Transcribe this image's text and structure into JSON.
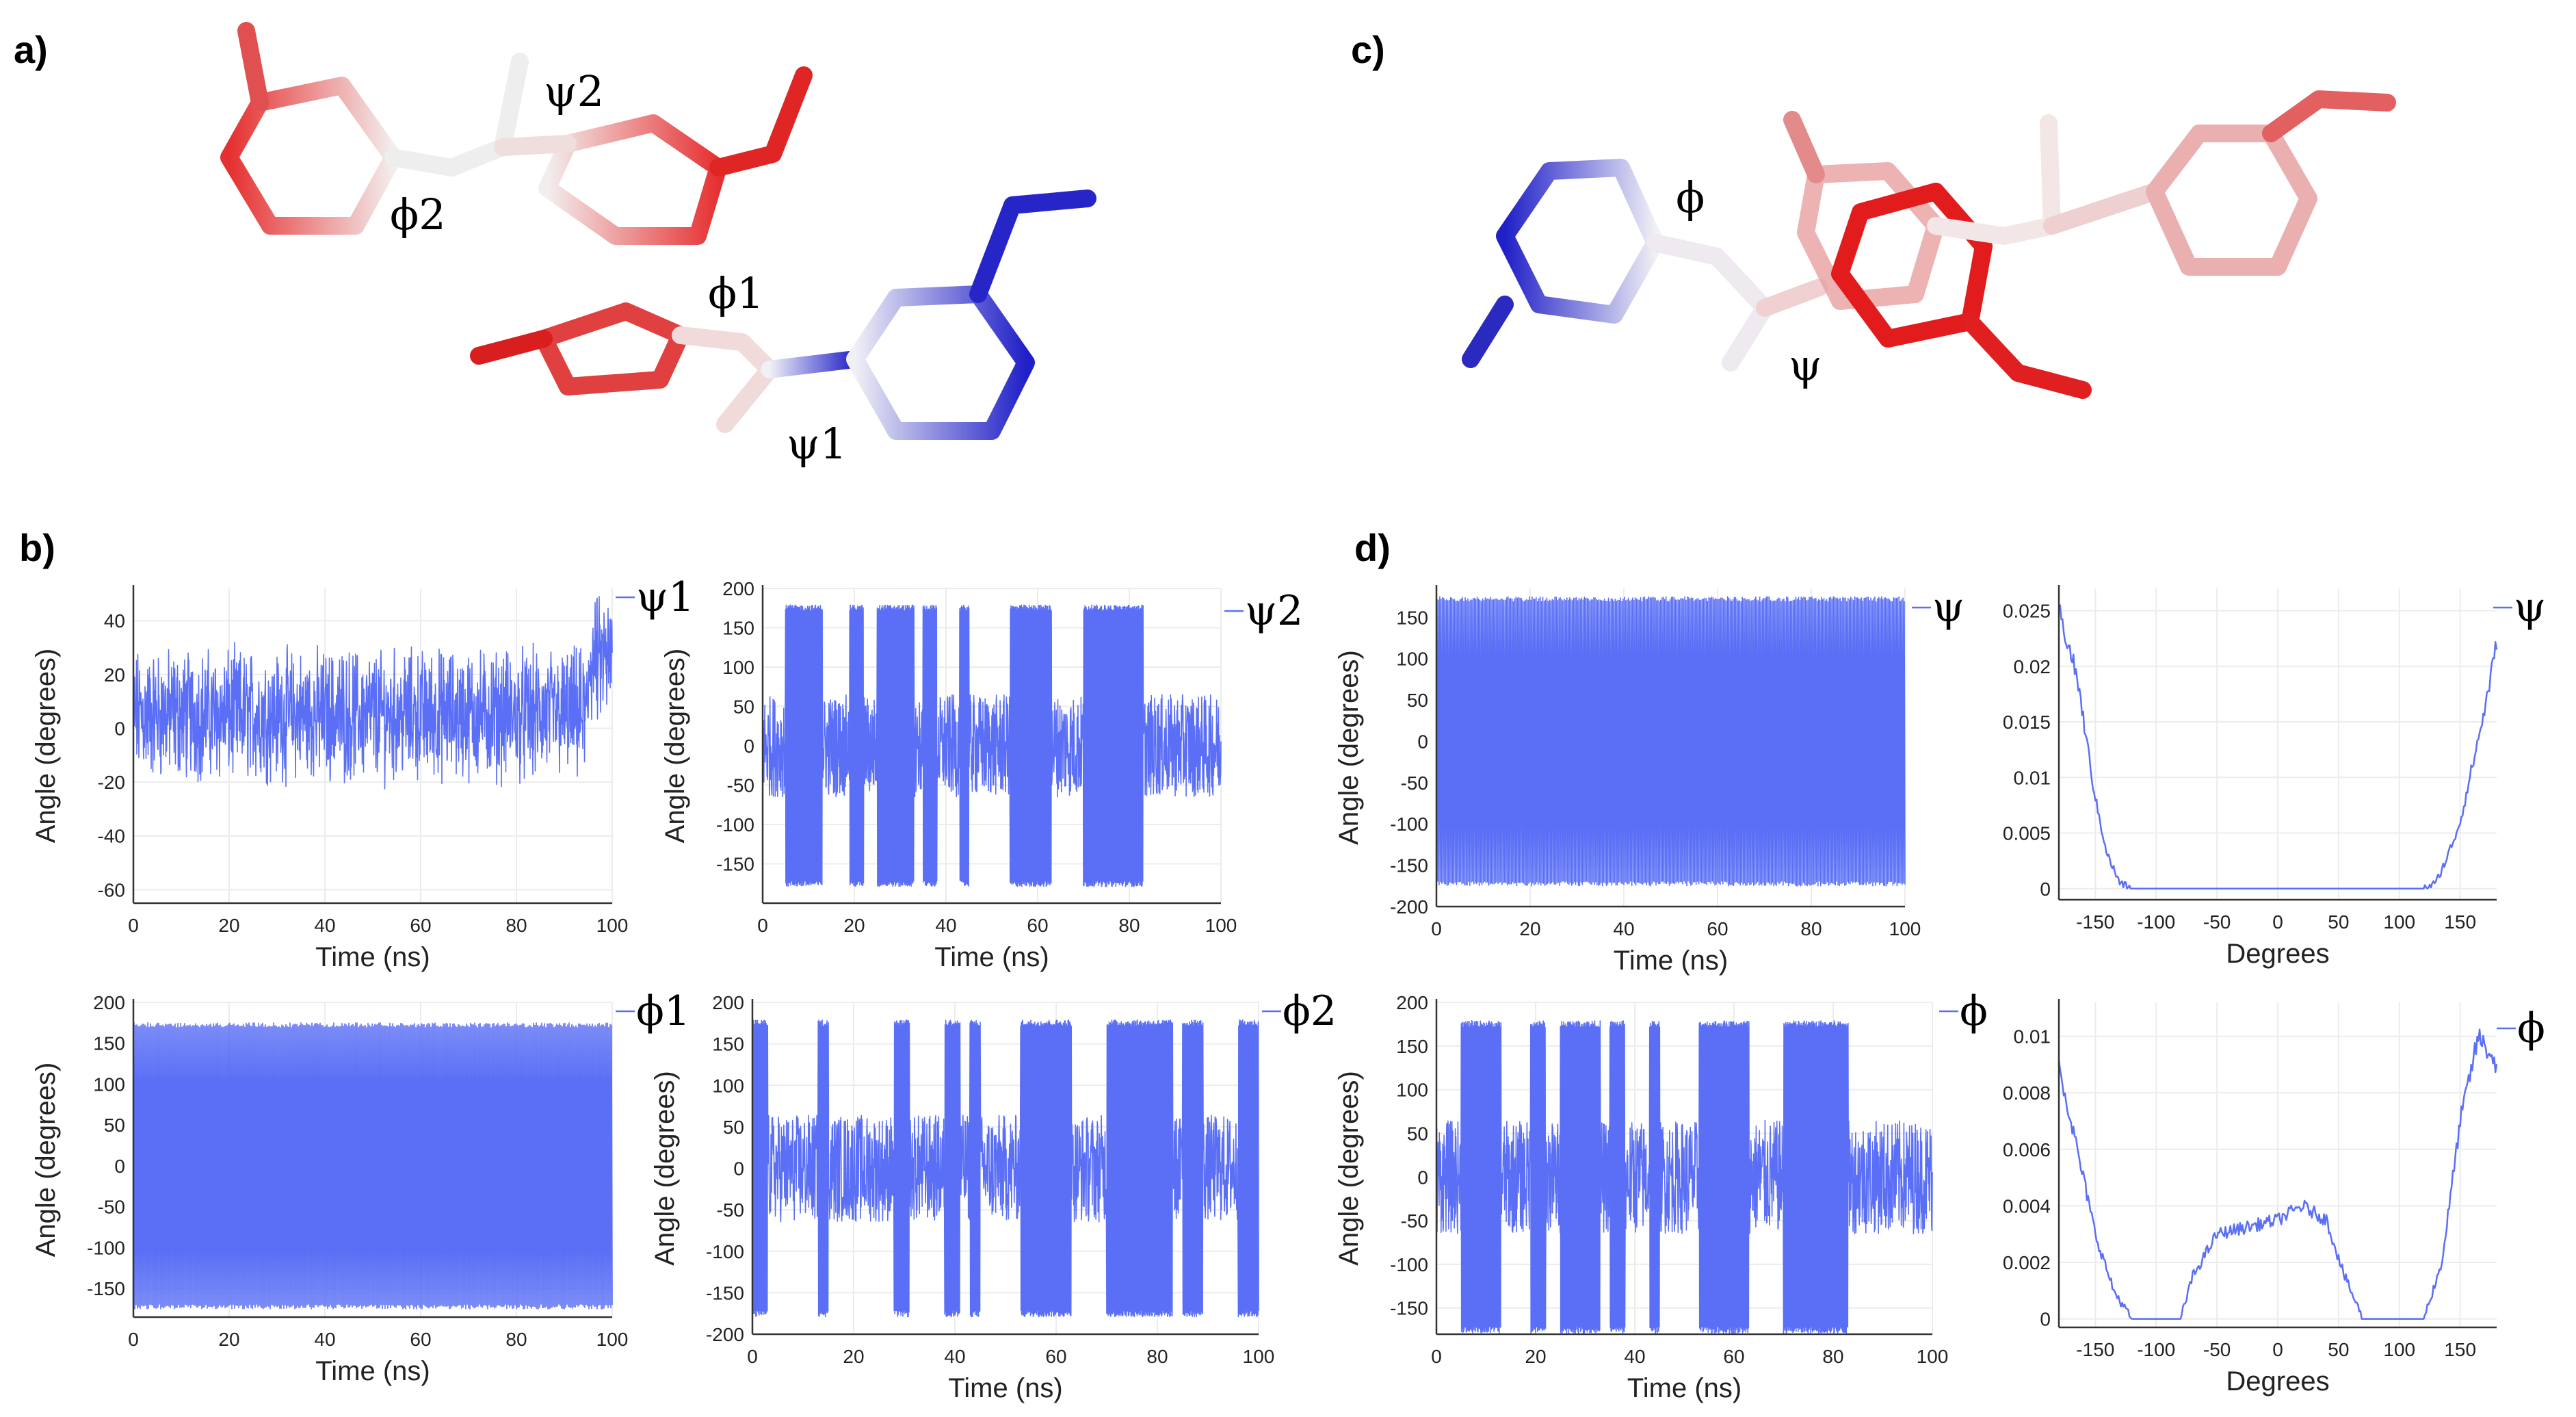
{
  "panel_labels": {
    "a": "a)",
    "b": "b)",
    "c": "c)",
    "d": "d)"
  },
  "molecule_labels": {
    "a": [
      "ψ2",
      "ϕ2",
      "ϕ1",
      "ψ1"
    ],
    "c": [
      "ϕ",
      "ψ"
    ]
  },
  "colors": {
    "series": "#5a6ff5",
    "grid": "#ececec",
    "axis": "#333333",
    "red": "#e02020",
    "blue": "#2222cc",
    "white": "#f2f2f2"
  },
  "chart_data": [
    {
      "id": "b-psi1",
      "type": "line",
      "legend": "ψ1",
      "xlabel": "Time (ns)",
      "ylabel": "Angle (degrees)",
      "xlim": [
        0,
        100
      ],
      "ylim": [
        -65,
        52
      ],
      "xticks": [
        0,
        20,
        40,
        60,
        80,
        100
      ],
      "yticks": [
        -60,
        -40,
        -20,
        0,
        20,
        40
      ],
      "pattern": "noise",
      "center": 5,
      "spread": 18
    },
    {
      "id": "b-psi2",
      "type": "line",
      "legend": "ψ2",
      "xlabel": "Time (ns)",
      "ylabel": "Angle (degrees)",
      "xlim": [
        0,
        100
      ],
      "ylim": [
        -200,
        200
      ],
      "xticks": [
        0,
        20,
        40,
        60,
        80,
        100
      ],
      "yticks": [
        -150,
        -100,
        -50,
        0,
        50,
        100,
        150,
        200
      ],
      "pattern": "switching",
      "hop_intervals": [
        [
          5,
          13
        ],
        [
          19,
          22
        ],
        [
          25,
          33
        ],
        [
          35,
          38
        ],
        [
          43,
          45
        ],
        [
          54,
          63
        ],
        [
          70,
          83
        ]
      ]
    },
    {
      "id": "b-phi1",
      "type": "line",
      "legend": "ϕ1",
      "xlabel": "Time (ns)",
      "ylabel": "Angle (degrees)",
      "xlim": [
        0,
        100
      ],
      "ylim": [
        -185,
        200
      ],
      "xticks": [
        0,
        20,
        40,
        60,
        80,
        100
      ],
      "yticks": [
        -150,
        -100,
        -50,
        0,
        50,
        100,
        150,
        200
      ],
      "pattern": "dense"
    },
    {
      "id": "b-phi2",
      "type": "line",
      "legend": "ϕ2",
      "xlabel": "Time (ns)",
      "ylabel": "Angle (degrees)",
      "xlim": [
        0,
        100
      ],
      "ylim": [
        -200,
        200
      ],
      "xticks": [
        0,
        20,
        40,
        60,
        80,
        100
      ],
      "yticks": [
        -200,
        -150,
        -100,
        -50,
        0,
        50,
        100,
        150,
        200
      ],
      "pattern": "switching",
      "hop_intervals": [
        [
          0,
          3
        ],
        [
          13,
          15
        ],
        [
          28,
          31
        ],
        [
          38,
          41
        ],
        [
          43,
          45
        ],
        [
          53,
          63
        ],
        [
          70,
          83
        ],
        [
          85,
          89
        ],
        [
          96,
          100
        ]
      ]
    },
    {
      "id": "d-psi",
      "type": "line",
      "legend": "ψ",
      "xlabel": "Time (ns)",
      "ylabel": "Angle (degrees)",
      "xlim": [
        0,
        100
      ],
      "ylim": [
        -200,
        185
      ],
      "xticks": [
        0,
        20,
        40,
        60,
        80,
        100
      ],
      "yticks": [
        -200,
        -150,
        -100,
        -50,
        0,
        50,
        100,
        150
      ],
      "pattern": "dense"
    },
    {
      "id": "d-psi-dist",
      "type": "line",
      "legend": "ψ",
      "xlabel": "Degrees",
      "ylabel": "",
      "xlim": [
        -180,
        180
      ],
      "ylim": [
        -0.001,
        0.027
      ],
      "xticks": [
        -150,
        -100,
        -50,
        0,
        50,
        100,
        150
      ],
      "yticks": [
        0,
        0.005,
        0.01,
        0.015,
        0.02,
        0.025
      ],
      "ytick_labels": [
        "0",
        "0.005",
        "0.01",
        "0.015",
        "0.02",
        "0.025"
      ],
      "pattern": "dist",
      "points": [
        [
          -180,
          0.025
        ],
        [
          -165,
          0.019
        ],
        [
          -150,
          0.008
        ],
        [
          -140,
          0.003
        ],
        [
          -130,
          0.0005
        ],
        [
          -120,
          0
        ],
        [
          120,
          0
        ],
        [
          130,
          0.0005
        ],
        [
          140,
          0.003
        ],
        [
          150,
          0.006
        ],
        [
          160,
          0.011
        ],
        [
          170,
          0.016
        ],
        [
          180,
          0.022
        ]
      ]
    },
    {
      "id": "d-phi",
      "type": "line",
      "legend": "ϕ",
      "xlabel": "Time (ns)",
      "ylabel": "Angle (degrees)",
      "xlim": [
        0,
        100
      ],
      "ylim": [
        -180,
        200
      ],
      "xticks": [
        0,
        20,
        40,
        60,
        80,
        100
      ],
      "yticks": [
        -150,
        -100,
        -50,
        0,
        50,
        100,
        150,
        200
      ],
      "pattern": "switching",
      "hop_intervals": [
        [
          5,
          13
        ],
        [
          19,
          22
        ],
        [
          25,
          33
        ],
        [
          35,
          38
        ],
        [
          43,
          45
        ],
        [
          53,
          63
        ],
        [
          70,
          83
        ]
      ]
    },
    {
      "id": "d-phi-dist",
      "type": "line",
      "legend": "ϕ",
      "xlabel": "Degrees",
      "ylabel": "",
      "xlim": [
        -180,
        180
      ],
      "ylim": [
        -0.0003,
        0.0112
      ],
      "xticks": [
        -150,
        -100,
        -50,
        0,
        50,
        100,
        150
      ],
      "yticks": [
        0,
        0.002,
        0.004,
        0.006,
        0.008,
        0.01
      ],
      "ytick_labels": [
        "0",
        "0.002",
        "0.004",
        "0.006",
        "0.008",
        "0.01"
      ],
      "pattern": "dist",
      "points": [
        [
          -180,
          0.009
        ],
        [
          -165,
          0.006
        ],
        [
          -150,
          0.003
        ],
        [
          -135,
          0.001
        ],
        [
          -120,
          0
        ],
        [
          -80,
          0
        ],
        [
          -70,
          0.0015
        ],
        [
          -50,
          0.003
        ],
        [
          -30,
          0.0032
        ],
        [
          0,
          0.0035
        ],
        [
          20,
          0.004
        ],
        [
          40,
          0.0035
        ],
        [
          55,
          0.0015
        ],
        [
          70,
          0
        ],
        [
          120,
          0
        ],
        [
          135,
          0.002
        ],
        [
          150,
          0.007
        ],
        [
          165,
          0.01
        ],
        [
          180,
          0.009
        ]
      ]
    }
  ]
}
